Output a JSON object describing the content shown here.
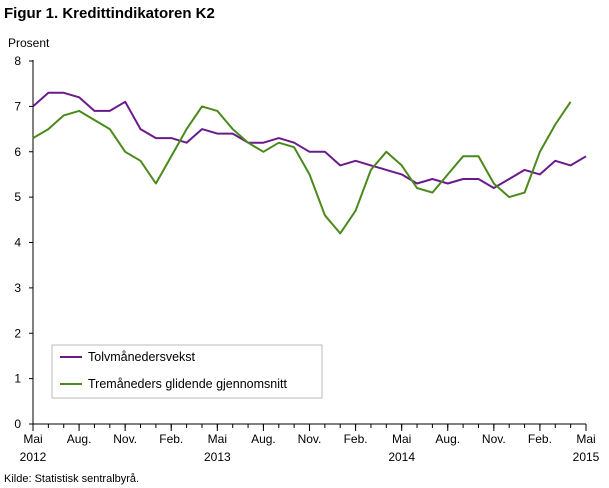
{
  "chart_data": {
    "type": "line",
    "title": "Figur 1. Kredittindikatoren K2",
    "ylabel": "Prosent",
    "source": "Kilde: Statistisk sentralbyrå.",
    "ylim": [
      0,
      8
    ],
    "yticks": [
      0,
      1,
      2,
      3,
      4,
      5,
      6,
      7,
      8
    ],
    "x_months": [
      "2012-05",
      "2012-06",
      "2012-07",
      "2012-08",
      "2012-09",
      "2012-10",
      "2012-11",
      "2012-12",
      "2013-01",
      "2013-02",
      "2013-03",
      "2013-04",
      "2013-05",
      "2013-06",
      "2013-07",
      "2013-08",
      "2013-09",
      "2013-10",
      "2013-11",
      "2013-12",
      "2014-01",
      "2014-02",
      "2014-03",
      "2014-04",
      "2014-05",
      "2014-06",
      "2014-07",
      "2014-08",
      "2014-09",
      "2014-10",
      "2014-11",
      "2014-12",
      "2015-01",
      "2015-02",
      "2015-03",
      "2015-04",
      "2015-05"
    ],
    "xtick_labels": [
      {
        "month": "2012-05",
        "label": "Mai",
        "year": "2012"
      },
      {
        "month": "2012-08",
        "label": "Aug."
      },
      {
        "month": "2012-11",
        "label": "Nov."
      },
      {
        "month": "2013-02",
        "label": "Feb."
      },
      {
        "month": "2013-05",
        "label": "Mai",
        "year": "2013"
      },
      {
        "month": "2013-08",
        "label": "Aug."
      },
      {
        "month": "2013-11",
        "label": "Nov."
      },
      {
        "month": "2014-02",
        "label": "Feb."
      },
      {
        "month": "2014-05",
        "label": "Mai",
        "year": "2014"
      },
      {
        "month": "2014-08",
        "label": "Aug."
      },
      {
        "month": "2014-11",
        "label": "Nov."
      },
      {
        "month": "2015-02",
        "label": "Feb."
      },
      {
        "month": "2015-05",
        "label": "Mai",
        "year": "2015"
      }
    ],
    "series": [
      {
        "name": "Tolvmånedersvekst",
        "color": "#6a1b8a",
        "values": [
          7.0,
          7.3,
          7.3,
          7.2,
          6.9,
          6.9,
          7.1,
          6.5,
          6.3,
          6.3,
          6.2,
          6.5,
          6.4,
          6.4,
          6.2,
          6.2,
          6.3,
          6.2,
          6.0,
          6.0,
          5.7,
          5.8,
          5.7,
          5.6,
          5.5,
          5.3,
          5.4,
          5.3,
          5.4,
          5.4,
          5.2,
          5.4,
          5.6,
          5.5,
          5.8,
          5.7,
          5.9
        ]
      },
      {
        "name": "Tremåneders glidende gjennomsnitt",
        "color": "#4a8a1c",
        "values": [
          6.3,
          6.5,
          6.8,
          6.9,
          6.7,
          6.5,
          6.0,
          5.8,
          5.3,
          5.9,
          6.5,
          7.0,
          6.9,
          6.5,
          6.2,
          6.0,
          6.2,
          6.1,
          5.5,
          4.6,
          4.2,
          4.7,
          5.6,
          6.0,
          5.7,
          5.2,
          5.1,
          5.5,
          5.9,
          5.9,
          5.3,
          5.0,
          5.1,
          6.0,
          6.6,
          7.1,
          null
        ]
      }
    ],
    "legend_position": "bottom-left",
    "grid": false
  }
}
